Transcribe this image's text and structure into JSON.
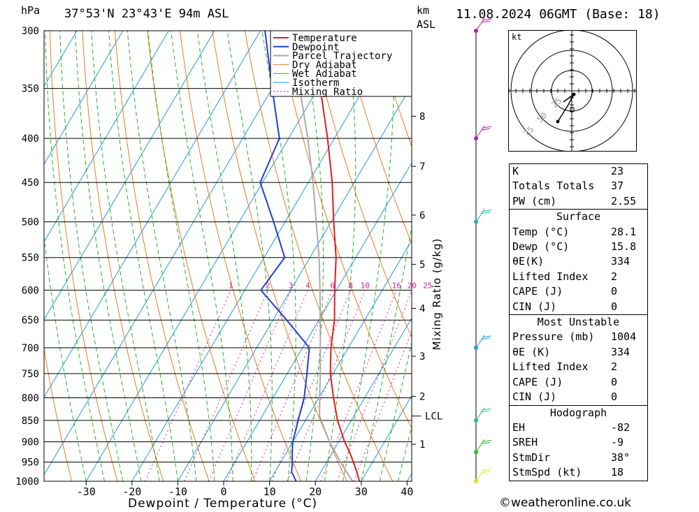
{
  "header": {
    "location": "37°53'N 23°43'E 94m ASL",
    "datetime": "11.08.2024 06GMT (Base: 18)",
    "hpa_label": "hPa",
    "km_label": "km",
    "asl_label": "ASL"
  },
  "footer": {
    "credit": "©weatheronline.co.uk"
  },
  "chart_data": {
    "type": "skewT",
    "xlabel": "Dewpoint / Temperature (°C)",
    "ylabel_right": "Mixing Ratio (g/kg)",
    "x_ticks": [
      -30,
      -20,
      -10,
      0,
      10,
      20,
      30,
      40
    ],
    "pressure_levels": [
      300,
      350,
      400,
      450,
      500,
      550,
      600,
      650,
      700,
      750,
      800,
      850,
      900,
      950,
      1000
    ],
    "km_ticks": [
      {
        "km": "1",
        "p": 906
      },
      {
        "km": "2",
        "p": 797
      },
      {
        "km": "3",
        "p": 716
      },
      {
        "km": "4",
        "p": 630
      },
      {
        "km": "5",
        "p": 560
      },
      {
        "km": "6",
        "p": 491
      },
      {
        "km": "7",
        "p": 431
      },
      {
        "km": "8",
        "p": 377
      }
    ],
    "lcl": {
      "label": "LCL",
      "p": 840
    },
    "mixing_ratio_labels": [
      "1",
      "2",
      "3",
      "4",
      "6",
      "8",
      "10",
      "16",
      "20",
      "25"
    ],
    "legend": [
      "Temperature",
      "Dewpoint",
      "Parcel Trajectory",
      "Dry Adiabat",
      "Wet Adiabat",
      "Isotherm",
      "Mixing Ratio"
    ],
    "colors": {
      "temperature": "#e41a1c",
      "dewpoint": "#1f3fd6",
      "parcel": "#aaaaaa",
      "dry_adiabat": "#e87b1e",
      "wet_adiabat": "#22b322",
      "isotherm": "#1e9be0",
      "mixing_ratio": "#d6209a"
    },
    "series": [
      {
        "name": "Temperature",
        "points": [
          {
            "p": 1000,
            "t": 29.6
          },
          {
            "p": 975,
            "t": 27.8
          },
          {
            "p": 950,
            "t": 25.8
          },
          {
            "p": 925,
            "t": 23.7
          },
          {
            "p": 900,
            "t": 21.3
          },
          {
            "p": 850,
            "t": 17.0
          },
          {
            "p": 800,
            "t": 13.2
          },
          {
            "p": 750,
            "t": 9.4
          },
          {
            "p": 700,
            "t": 6.2
          },
          {
            "p": 650,
            "t": 3.4
          },
          {
            "p": 600,
            "t": -0.4
          },
          {
            "p": 550,
            "t": -4.3
          },
          {
            "p": 500,
            "t": -9.4
          },
          {
            "p": 450,
            "t": -14.8
          },
          {
            "p": 400,
            "t": -21.5
          },
          {
            "p": 350,
            "t": -29.5
          },
          {
            "p": 300,
            "t": -38.6
          }
        ]
      },
      {
        "name": "Dewpoint",
        "points": [
          {
            "p": 1000,
            "t": 15.8
          },
          {
            "p": 975,
            "t": 13.6
          },
          {
            "p": 950,
            "t": 12.5
          },
          {
            "p": 925,
            "t": 11.2
          },
          {
            "p": 900,
            "t": 10.0
          },
          {
            "p": 850,
            "t": 8.4
          },
          {
            "p": 800,
            "t": 6.8
          },
          {
            "p": 750,
            "t": 4.3
          },
          {
            "p": 700,
            "t": 1.5
          },
          {
            "p": 650,
            "t": -7.0
          },
          {
            "p": 600,
            "t": -16.5
          },
          {
            "p": 550,
            "t": -15.5
          },
          {
            "p": 500,
            "t": -22.5
          },
          {
            "p": 450,
            "t": -30.5
          },
          {
            "p": 400,
            "t": -32.0
          },
          {
            "p": 350,
            "t": -40.0
          },
          {
            "p": 300,
            "t": -49.0
          }
        ]
      },
      {
        "name": "Parcel Trajectory",
        "points": [
          {
            "p": 1000,
            "t": 28.1
          },
          {
            "p": 950,
            "t": 23.0
          },
          {
            "p": 900,
            "t": 18.0
          },
          {
            "p": 840,
            "t": 12.5
          },
          {
            "p": 800,
            "t": 10.2
          },
          {
            "p": 750,
            "t": 7.2
          },
          {
            "p": 700,
            "t": 3.9
          },
          {
            "p": 650,
            "t": 0.3
          },
          {
            "p": 600,
            "t": -3.6
          },
          {
            "p": 550,
            "t": -8.0
          },
          {
            "p": 500,
            "t": -13.2
          },
          {
            "p": 450,
            "t": -19.0
          },
          {
            "p": 400,
            "t": -25.8
          },
          {
            "p": 350,
            "t": -34.0
          },
          {
            "p": 310,
            "t": -41.5
          }
        ]
      }
    ]
  },
  "hodograph": {
    "unit_label": "kt",
    "ring_labels": [
      "25",
      "50",
      "75"
    ]
  },
  "indices": {
    "basic": [
      {
        "label": "K",
        "value": "23"
      },
      {
        "label": "Totals Totals",
        "value": "37"
      },
      {
        "label": "PW (cm)",
        "value": "2.55"
      }
    ],
    "surface": {
      "title": "Surface",
      "rows": [
        {
          "label": "Temp (°C)",
          "value": "28.1"
        },
        {
          "label": "Dewp (°C)",
          "value": "15.8"
        },
        {
          "label": "θE(K)",
          "value": "334"
        },
        {
          "label": "Lifted Index",
          "value": "2"
        },
        {
          "label": "CAPE (J)",
          "value": "0"
        },
        {
          "label": "CIN (J)",
          "value": "0"
        }
      ]
    },
    "most_unstable": {
      "title": "Most Unstable",
      "rows": [
        {
          "label": "Pressure (mb)",
          "value": "1004"
        },
        {
          "label": "θE (K)",
          "value": "334"
        },
        {
          "label": "Lifted Index",
          "value": "2"
        },
        {
          "label": "CAPE (J)",
          "value": "0"
        },
        {
          "label": "CIN (J)",
          "value": "0"
        }
      ]
    },
    "hodograph": {
      "title": "Hodograph",
      "rows": [
        {
          "label": "EH",
          "value": "-82"
        },
        {
          "label": "SREH",
          "value": "-9"
        },
        {
          "label": "StmDir",
          "value": "38°"
        },
        {
          "label": "StmSpd (kt)",
          "value": "18"
        }
      ]
    }
  }
}
